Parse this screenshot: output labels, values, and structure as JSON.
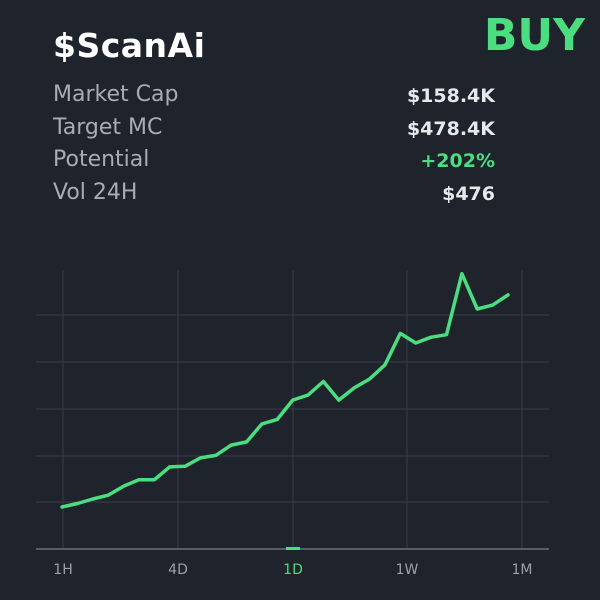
{
  "token": {
    "name": "$ScanAi"
  },
  "signal": {
    "label": "BUY",
    "color": "#4ade80"
  },
  "stats": [
    {
      "label": "Market Cap",
      "value": "$158.4K",
      "tone": "neutral"
    },
    {
      "label": "Target MC",
      "value": "$478.4K",
      "tone": "neutral"
    },
    {
      "label": "Potential",
      "value": "+202%",
      "tone": "positive"
    },
    {
      "label": "Vol 24H",
      "value": "$476",
      "tone": "neutral"
    }
  ],
  "timeframes": [
    {
      "label": "1H",
      "active": false
    },
    {
      "label": "4D",
      "active": false
    },
    {
      "label": "1D",
      "active": true
    },
    {
      "label": "1W",
      "active": false
    },
    {
      "label": "1M",
      "active": false
    }
  ],
  "colors": {
    "background": "#1f232b",
    "line": "#4ade80",
    "grid": "#3a3f47",
    "label": "#a8adb5",
    "axis_text": "#9aa0a8"
  },
  "chart_data": {
    "type": "line",
    "title": "",
    "xlabel": "",
    "ylabel": "",
    "grid": true,
    "x_tick_labels": [
      "1H",
      "4D",
      "1D",
      "1W",
      "1M"
    ],
    "series": [
      {
        "values": [
          0.16,
          0.7,
          1.4,
          2.0,
          3.4,
          4.4,
          4.4,
          6.4,
          6.5,
          7.8,
          8.2,
          9.8,
          10.3,
          13.1,
          13.8,
          16.8,
          17.6,
          19.7,
          16.8,
          18.7,
          20.1,
          22.3,
          27.2,
          25.7,
          26.6,
          27.0,
          36.5,
          31.0,
          31.6,
          33.2
        ]
      }
    ]
  }
}
